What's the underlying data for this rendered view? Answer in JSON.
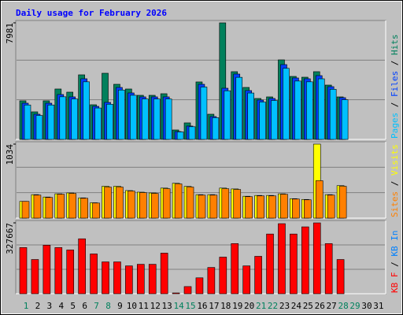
{
  "chart_data": {
    "type": "bar",
    "title": "Daily usage for February 2026",
    "categories": [
      "1",
      "2",
      "3",
      "4",
      "5",
      "6",
      "7",
      "8",
      "9",
      "10",
      "11",
      "12",
      "13",
      "14",
      "15",
      "16",
      "17",
      "18",
      "19",
      "20",
      "21",
      "22",
      "23",
      "24",
      "25",
      "26",
      "27",
      "28",
      "29",
      "30",
      "31"
    ],
    "category_colors": [
      "#00805c",
      "#000000",
      "#000000",
      "#000000",
      "#000000",
      "#000000",
      "#00805c",
      "#00805c",
      "#000000",
      "#000000",
      "#000000",
      "#000000",
      "#000000",
      "#00805c",
      "#00805c",
      "#000000",
      "#000000",
      "#000000",
      "#000000",
      "#000000",
      "#00805c",
      "#00805c",
      "#000000",
      "#000000",
      "#000000",
      "#000000",
      "#000000",
      "#00805c",
      "#00805c",
      "#000000",
      "#000000"
    ],
    "panels": [
      {
        "ylim": [
          0,
          7981
        ],
        "yticks": [
          7981
        ],
        "series": [
          {
            "name": "Hits",
            "color": "#00805c",
            "values": [
              2643,
              1888,
              2643,
              3452,
              3236,
              4422,
              2373,
              4530,
              3775,
              3452,
              3020,
              3020,
              3128,
              647,
              1133,
              3937,
              1726,
              7981,
              4638,
              3559,
              2804,
              2912,
              5447,
              4314,
              4260,
              4638,
              3721,
              2912
            ]
          },
          {
            "name": "Files",
            "color": "#0040ff",
            "values": [
              2481,
              1726,
              2481,
              3074,
              2912,
              4153,
              2265,
              2535,
              3559,
              3182,
              2912,
              2912,
              2912,
              539,
              917,
              3775,
              1564,
              3505,
              4476,
              3344,
              2696,
              2804,
              5123,
              4207,
              4153,
              4368,
              3613,
              2858
            ]
          },
          {
            "name": "Pages",
            "color": "#00c0ff",
            "values": [
              2357,
              1640,
              2357,
              2920,
              2766,
              3945,
              2152,
              2408,
              3381,
              3023,
              2766,
              2766,
              2766,
              512,
              871,
              3586,
              1486,
              3330,
              4252,
              3177,
              2561,
              2664,
              4867,
              3997,
              3945,
              4150,
              3432,
              2715
            ]
          }
        ]
      },
      {
        "ylim": [
          0,
          1034
        ],
        "yticks": [
          1034
        ],
        "series": [
          {
            "name": "Visits",
            "color": "#ffff00",
            "values": [
              234,
              328,
              295,
              340,
              352,
              283,
              215,
              445,
              445,
              385,
              363,
              352,
              420,
              487,
              443,
              328,
              328,
              420,
              408,
              306,
              317,
              317,
              340,
              272,
              261,
              1034,
              328,
              454
            ]
          },
          {
            "name": "Sites",
            "color": "#ff8000",
            "values": [
              234,
              322,
              289,
              334,
              345,
              278,
              211,
              434,
              434,
              378,
              356,
              345,
              411,
              478,
              434,
              322,
              322,
              411,
              400,
              300,
              311,
              311,
              334,
              267,
              256,
              523,
              322,
              445
            ]
          }
        ]
      },
      {
        "ylim": [
          0,
          327667
        ],
        "yticks": [
          327667
        ],
        "series": [
          {
            "name": "KB In",
            "color": "#0080ff",
            "values": [
              0,
              0,
              0,
              0,
              0,
              0,
              0,
              0,
              0,
              0,
              0,
              0,
              0,
              0,
              0,
              0,
              0,
              0,
              0,
              0,
              0,
              0,
              0,
              0,
              0,
              0,
              0,
              0
            ]
          },
          {
            "name": "KB F",
            "color": "#ff0000",
            "values": [
              213534,
              158310,
              224578,
              213534,
              202488,
              254034,
              184082,
              147264,
              147264,
              128858,
              136221,
              136221,
              187763,
              3682,
              33135,
              73633,
              121495,
              169357,
              231943,
              128858,
              173038,
              276124,
              323985,
              276124,
              309257,
              327667,
              231943,
              158310
            ]
          }
        ]
      }
    ]
  }
}
